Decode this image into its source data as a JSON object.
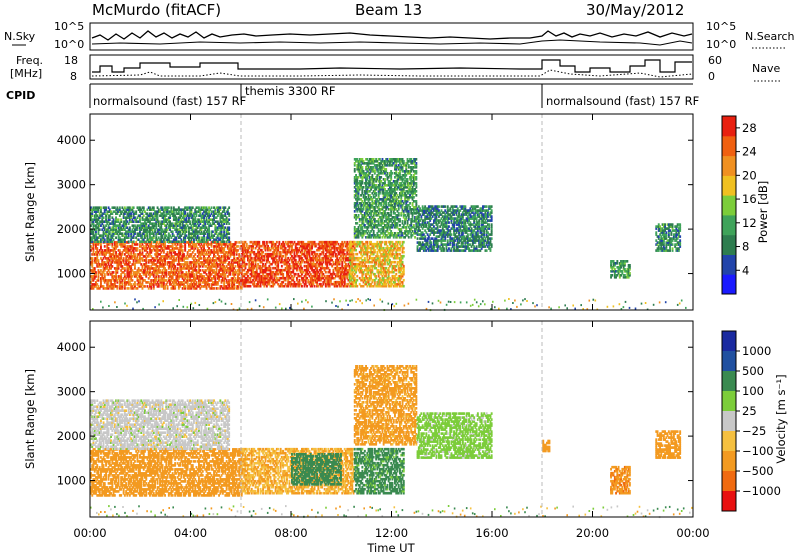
{
  "header": {
    "station": "McMurdo (fitACF)",
    "beam": "Beam 13",
    "date": "30/May/2012"
  },
  "strip_labels": {
    "nsky": "N.Sky",
    "nsky_ticks": [
      "10^5",
      "10^0"
    ],
    "nsearch": "N.Search",
    "nsearch_ticks": [
      "10^5",
      "10^0"
    ],
    "freq_line1": "Freq.",
    "freq_line2": "[MHz]",
    "freq_ticks": [
      "18",
      "8"
    ],
    "nave": "Nave",
    "nave_ticks": [
      "60",
      "0"
    ],
    "cpid": "CPID"
  },
  "cpid_segments": [
    {
      "start_h": 0.0,
      "end_h": 6.0,
      "label": "normalsound (fast) 157 RF"
    },
    {
      "start_h": 6.0,
      "end_h": 18.0,
      "label": "themis 3300 RF"
    },
    {
      "start_h": 18.0,
      "end_h": 24.0,
      "label": "normalsound (fast) 157 RF"
    }
  ],
  "colors": {
    "power_scale": [
      "#1a1aff",
      "#2244aa",
      "#2e7d4f",
      "#3fa35a",
      "#7ccd3a",
      "#f0c020",
      "#f09020",
      "#f06010",
      "#e82010"
    ],
    "velocity_scale": [
      "#e81010",
      "#f06a10",
      "#f39a20",
      "#f5c040",
      "#c8c8c8",
      "#7ccd3a",
      "#3a8a50",
      "#2050a0",
      "#1a2aa0"
    ]
  },
  "chart_data": [
    {
      "type": "heatmap",
      "title": "Power",
      "xlabel": "Time UT",
      "ylabel": "Slant Range [km]",
      "xlim_hours": [
        0,
        24
      ],
      "x_ticks": [
        "00:00",
        "04:00",
        "08:00",
        "12:00",
        "16:00",
        "20:00",
        "00:00"
      ],
      "ylim": [
        180,
        4590
      ],
      "y_ticks": [
        1000,
        2000,
        3000,
        4000
      ],
      "colorbar": {
        "label": "Power [dB]",
        "ticks": [
          "4",
          "8",
          "12",
          "16",
          "20",
          "24",
          "28"
        ],
        "range": [
          0,
          30
        ]
      },
      "regions": [
        {
          "t": [
            0.0,
            6.0
          ],
          "r": [
            650,
            1700
          ],
          "v": 26
        },
        {
          "t": [
            0.0,
            5.5
          ],
          "r": [
            1700,
            2500
          ],
          "v": 9
        },
        {
          "t": [
            6.0,
            10.5
          ],
          "r": [
            700,
            1700
          ],
          "v": 28
        },
        {
          "t": [
            10.3,
            12.5
          ],
          "r": [
            700,
            1700
          ],
          "v": 20
        },
        {
          "t": [
            10.5,
            13.0
          ],
          "r": [
            1800,
            3600
          ],
          "v": 10
        },
        {
          "t": [
            13.0,
            16.0
          ],
          "r": [
            1500,
            2500
          ],
          "v": 8
        },
        {
          "t": [
            20.7,
            21.5
          ],
          "r": [
            900,
            1300
          ],
          "v": 10
        },
        {
          "t": [
            22.5,
            23.5
          ],
          "r": [
            1500,
            2100
          ],
          "v": 9
        }
      ]
    },
    {
      "type": "heatmap",
      "title": "Velocity",
      "xlabel": "Time UT",
      "ylabel": "Slant Range [km]",
      "xlim_hours": [
        0,
        24
      ],
      "x_ticks": [
        "00:00",
        "04:00",
        "08:00",
        "12:00",
        "16:00",
        "20:00",
        "00:00"
      ],
      "ylim": [
        180,
        4590
      ],
      "y_ticks": [
        1000,
        2000,
        3000,
        4000
      ],
      "colorbar": {
        "label": "Velocity [m s⁻¹]",
        "ticks": [
          "1000",
          "500",
          "100",
          "25",
          "−25",
          "−100",
          "−500",
          "−1000"
        ]
      },
      "regions": [
        {
          "t": [
            0.0,
            6.0
          ],
          "r": [
            650,
            1700
          ],
          "v": -200
        },
        {
          "t": [
            0.0,
            5.5
          ],
          "r": [
            1700,
            2800
          ],
          "v": 0
        },
        {
          "t": [
            6.0,
            10.5
          ],
          "r": [
            700,
            1700
          ],
          "v": -100
        },
        {
          "t": [
            8.0,
            10.0
          ],
          "r": [
            900,
            1600
          ],
          "v": 300
        },
        {
          "t": [
            10.5,
            12.5
          ],
          "r": [
            700,
            1700
          ],
          "v": 150
        },
        {
          "t": [
            10.5,
            13.0
          ],
          "r": [
            1800,
            3600
          ],
          "v": -150
        },
        {
          "t": [
            13.0,
            16.0
          ],
          "r": [
            1500,
            2500
          ],
          "v": 50
        },
        {
          "t": [
            18.0,
            18.3
          ],
          "r": [
            1650,
            1900
          ],
          "v": -300
        },
        {
          "t": [
            20.7,
            21.5
          ],
          "r": [
            700,
            1300
          ],
          "v": -400
        },
        {
          "t": [
            22.5,
            23.5
          ],
          "r": [
            1500,
            2100
          ],
          "v": -300
        }
      ]
    }
  ]
}
